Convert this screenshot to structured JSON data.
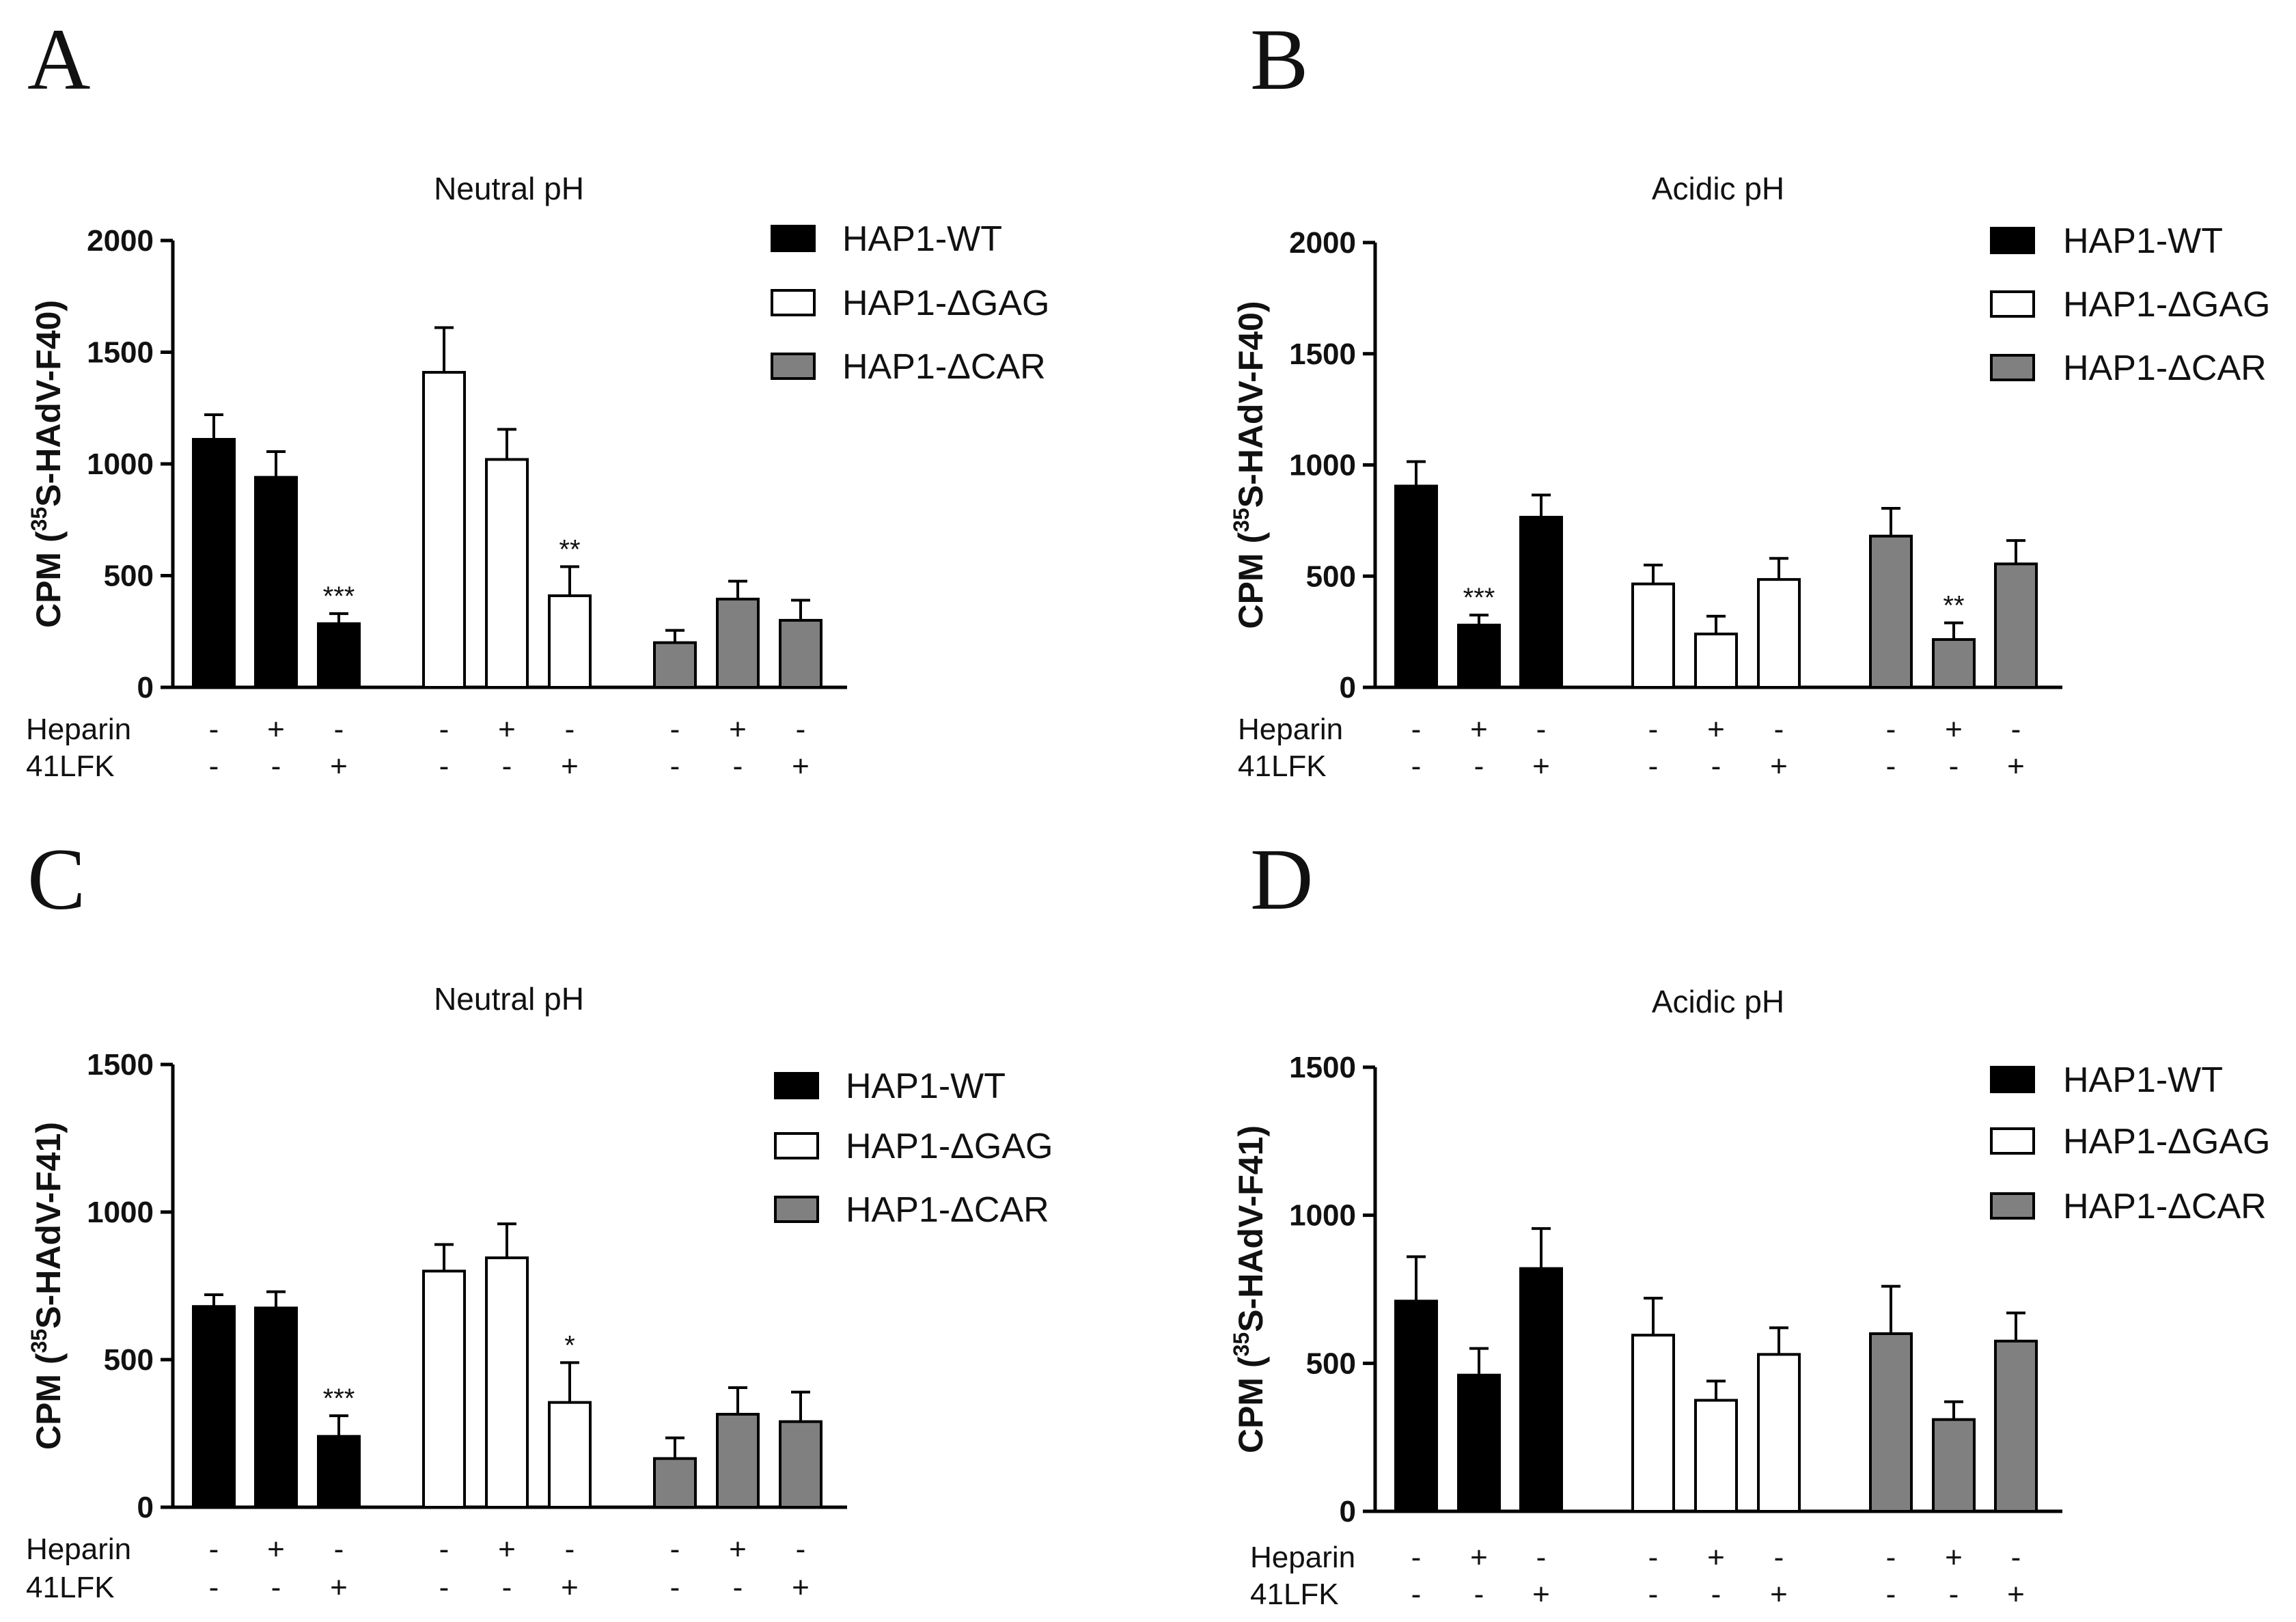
{
  "colors": {
    "wt": "#000000",
    "gag": "#ffffff",
    "car": "#808080",
    "stroke": "#000000"
  },
  "treatments": {
    "heparin_label": "Heparin",
    "lfk_label": "41LFK",
    "heparin_signs": [
      "-",
      "+",
      "-",
      "-",
      "+",
      "-",
      "-",
      "+",
      "-"
    ],
    "lfk_signs": [
      "-",
      "-",
      "+",
      "-",
      "-",
      "+",
      "-",
      "-",
      "+"
    ]
  },
  "legend": [
    "HAP1-WT",
    "HAP1-ΔGAG",
    "HAP1-ΔCAR"
  ],
  "chart_data": [
    {
      "panel": "A",
      "type": "bar",
      "title": "Neutral pH",
      "ylabel": "CPM (35S-HAdV-F40)",
      "ylabel_parts": [
        "CPM (",
        "35",
        "S-HAdV-F40)"
      ],
      "ylim": [
        0,
        2000
      ],
      "yticks": [
        "0",
        "500",
        "1000",
        "1500",
        "2000"
      ],
      "ytick_values": [
        0,
        500,
        1000,
        1500,
        2000
      ],
      "groups": [
        "HAP1-WT",
        "HAP1-ΔGAG",
        "HAP1-ΔCAR"
      ],
      "values": [
        1110,
        940,
        285,
        1410,
        1020,
        410,
        200,
        395,
        300
      ],
      "errors": [
        110,
        115,
        45,
        200,
        135,
        130,
        55,
        80,
        90
      ],
      "significance": [
        "",
        "",
        "***",
        "",
        "",
        "**",
        "",
        "",
        ""
      ]
    },
    {
      "panel": "B",
      "type": "bar",
      "title": "Acidic pH",
      "ylabel": "CPM (35S-HAdV-F40)",
      "ylabel_parts": [
        "CPM (",
        "35",
        "S-HAdV-F40)"
      ],
      "ylim": [
        0,
        2000
      ],
      "yticks": [
        "0",
        "500",
        "1000",
        "1500",
        "2000"
      ],
      "ytick_values": [
        0,
        500,
        1000,
        1500,
        2000
      ],
      "groups": [
        "HAP1-WT",
        "HAP1-ΔGAG",
        "HAP1-ΔCAR"
      ],
      "values": [
        905,
        280,
        765,
        465,
        240,
        485,
        680,
        215,
        555
      ],
      "errors": [
        110,
        45,
        100,
        85,
        80,
        95,
        125,
        75,
        105
      ],
      "significance": [
        "",
        "***",
        "",
        "",
        "",
        "",
        "",
        "**",
        ""
      ]
    },
    {
      "panel": "C",
      "type": "bar",
      "title": "Neutral pH",
      "ylabel": "CPM (35S-HAdV-F41)",
      "ylabel_parts": [
        "CPM (",
        "35",
        "S-HAdV-F41)"
      ],
      "ylim": [
        0,
        1500
      ],
      "yticks": [
        "0",
        "500",
        "1000",
        "1500"
      ],
      "ytick_values": [
        0,
        500,
        1000,
        1500
      ],
      "groups": [
        "HAP1-WT",
        "HAP1-ΔGAG",
        "HAP1-ΔCAR"
      ],
      "values": [
        680,
        675,
        240,
        800,
        845,
        355,
        165,
        315,
        290
      ],
      "errors": [
        40,
        55,
        70,
        90,
        115,
        135,
        70,
        90,
        100
      ],
      "significance": [
        "",
        "",
        "***",
        "",
        "",
        "*",
        "",
        "",
        ""
      ]
    },
    {
      "panel": "D",
      "type": "bar",
      "title": "Acidic pH",
      "ylabel": "CPM (35S-HAdV-F41)",
      "ylabel_parts": [
        "CPM (",
        "35",
        "S-HAdV-F41)"
      ],
      "ylim": [
        0,
        1500
      ],
      "yticks": [
        "0",
        "500",
        "1000",
        "1500"
      ],
      "ytick_values": [
        0,
        500,
        1000,
        1500
      ],
      "groups": [
        "HAP1-WT",
        "HAP1-ΔGAG",
        "HAP1-ΔCAR"
      ],
      "values": [
        710,
        460,
        820,
        595,
        375,
        530,
        600,
        310,
        575
      ],
      "errors": [
        150,
        90,
        135,
        125,
        65,
        90,
        160,
        60,
        95
      ],
      "significance": [
        "",
        "",
        "",
        "",
        "",
        "",
        "",
        "",
        ""
      ]
    }
  ]
}
